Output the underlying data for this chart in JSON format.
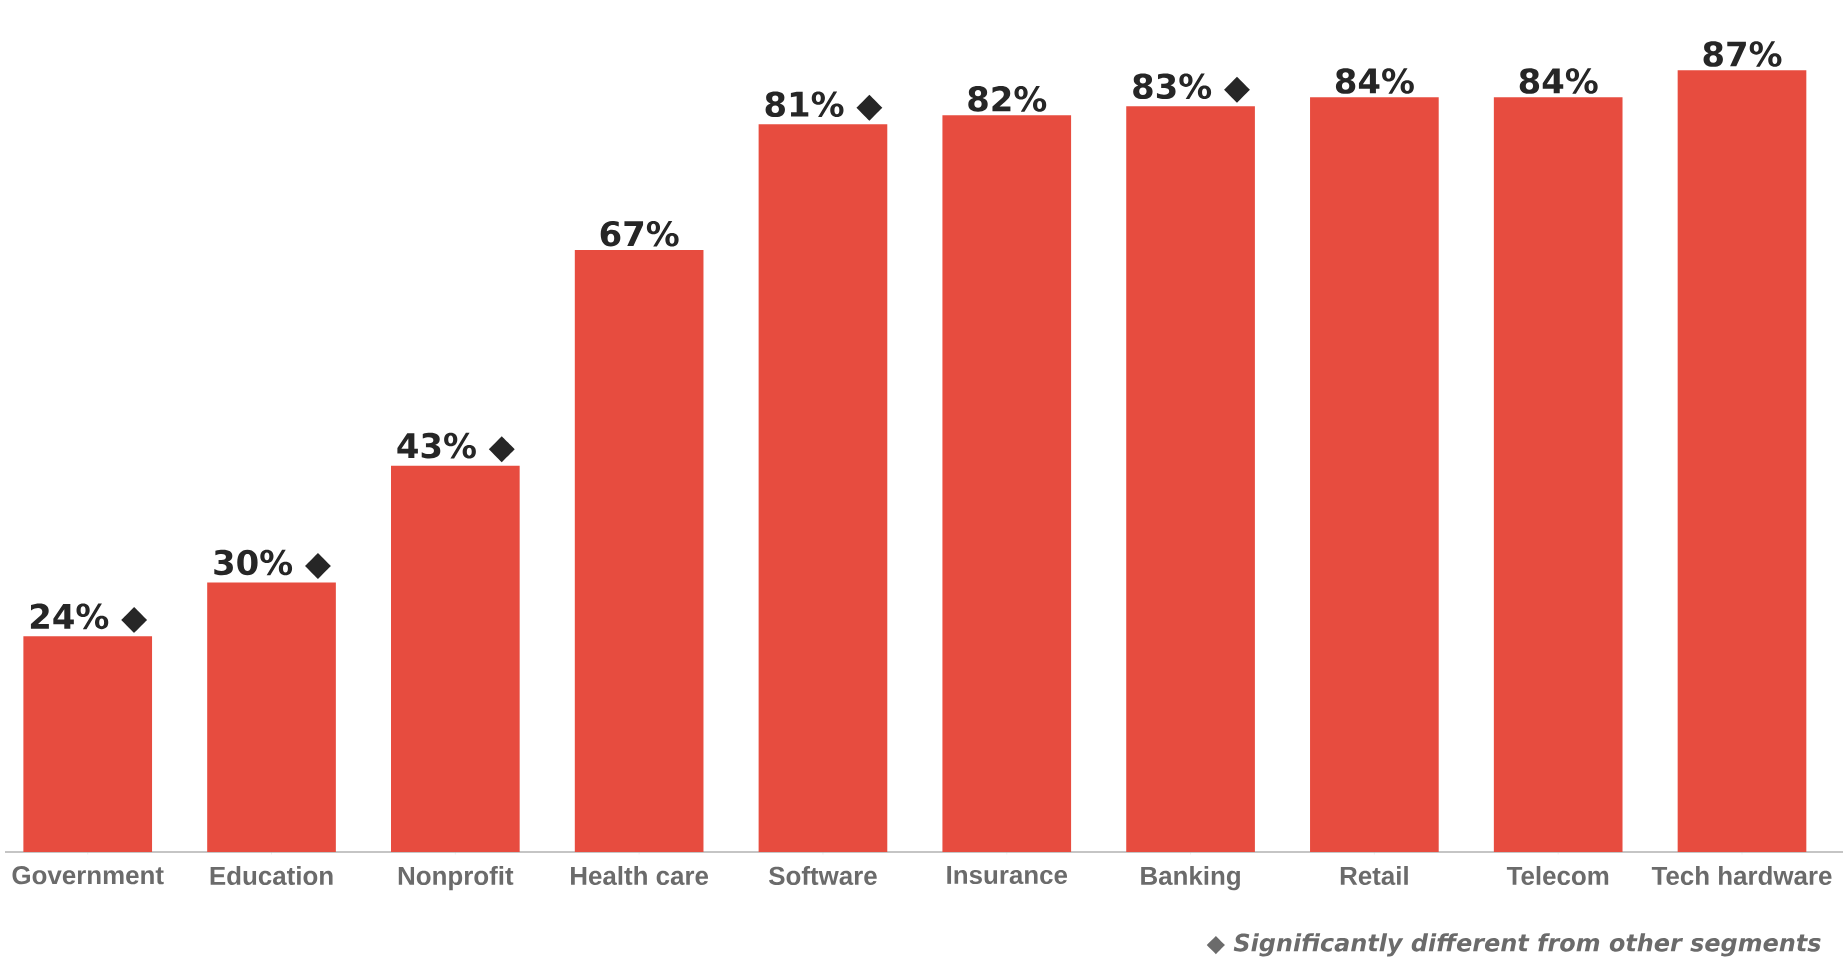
{
  "chart_data": {
    "type": "bar",
    "categories": [
      "Government",
      "Education",
      "Nonprofit",
      "Health care",
      "Software",
      "Insurance",
      "Banking",
      "Retail",
      "Telecom",
      "Tech hardware"
    ],
    "values": [
      24,
      30,
      43,
      67,
      81,
      82,
      83,
      84,
      84,
      87
    ],
    "value_labels": [
      "24% ◆",
      "30% ◆",
      "43% ◆",
      "67%",
      "81% ◆",
      "82%",
      "83% ◆",
      "84%",
      "84%",
      "87%"
    ],
    "color": "#e74c3f",
    "tick_labels": "x",
    "annotations": [
      "◆ *Significantly different from other segments*"
    ]
  }
}
